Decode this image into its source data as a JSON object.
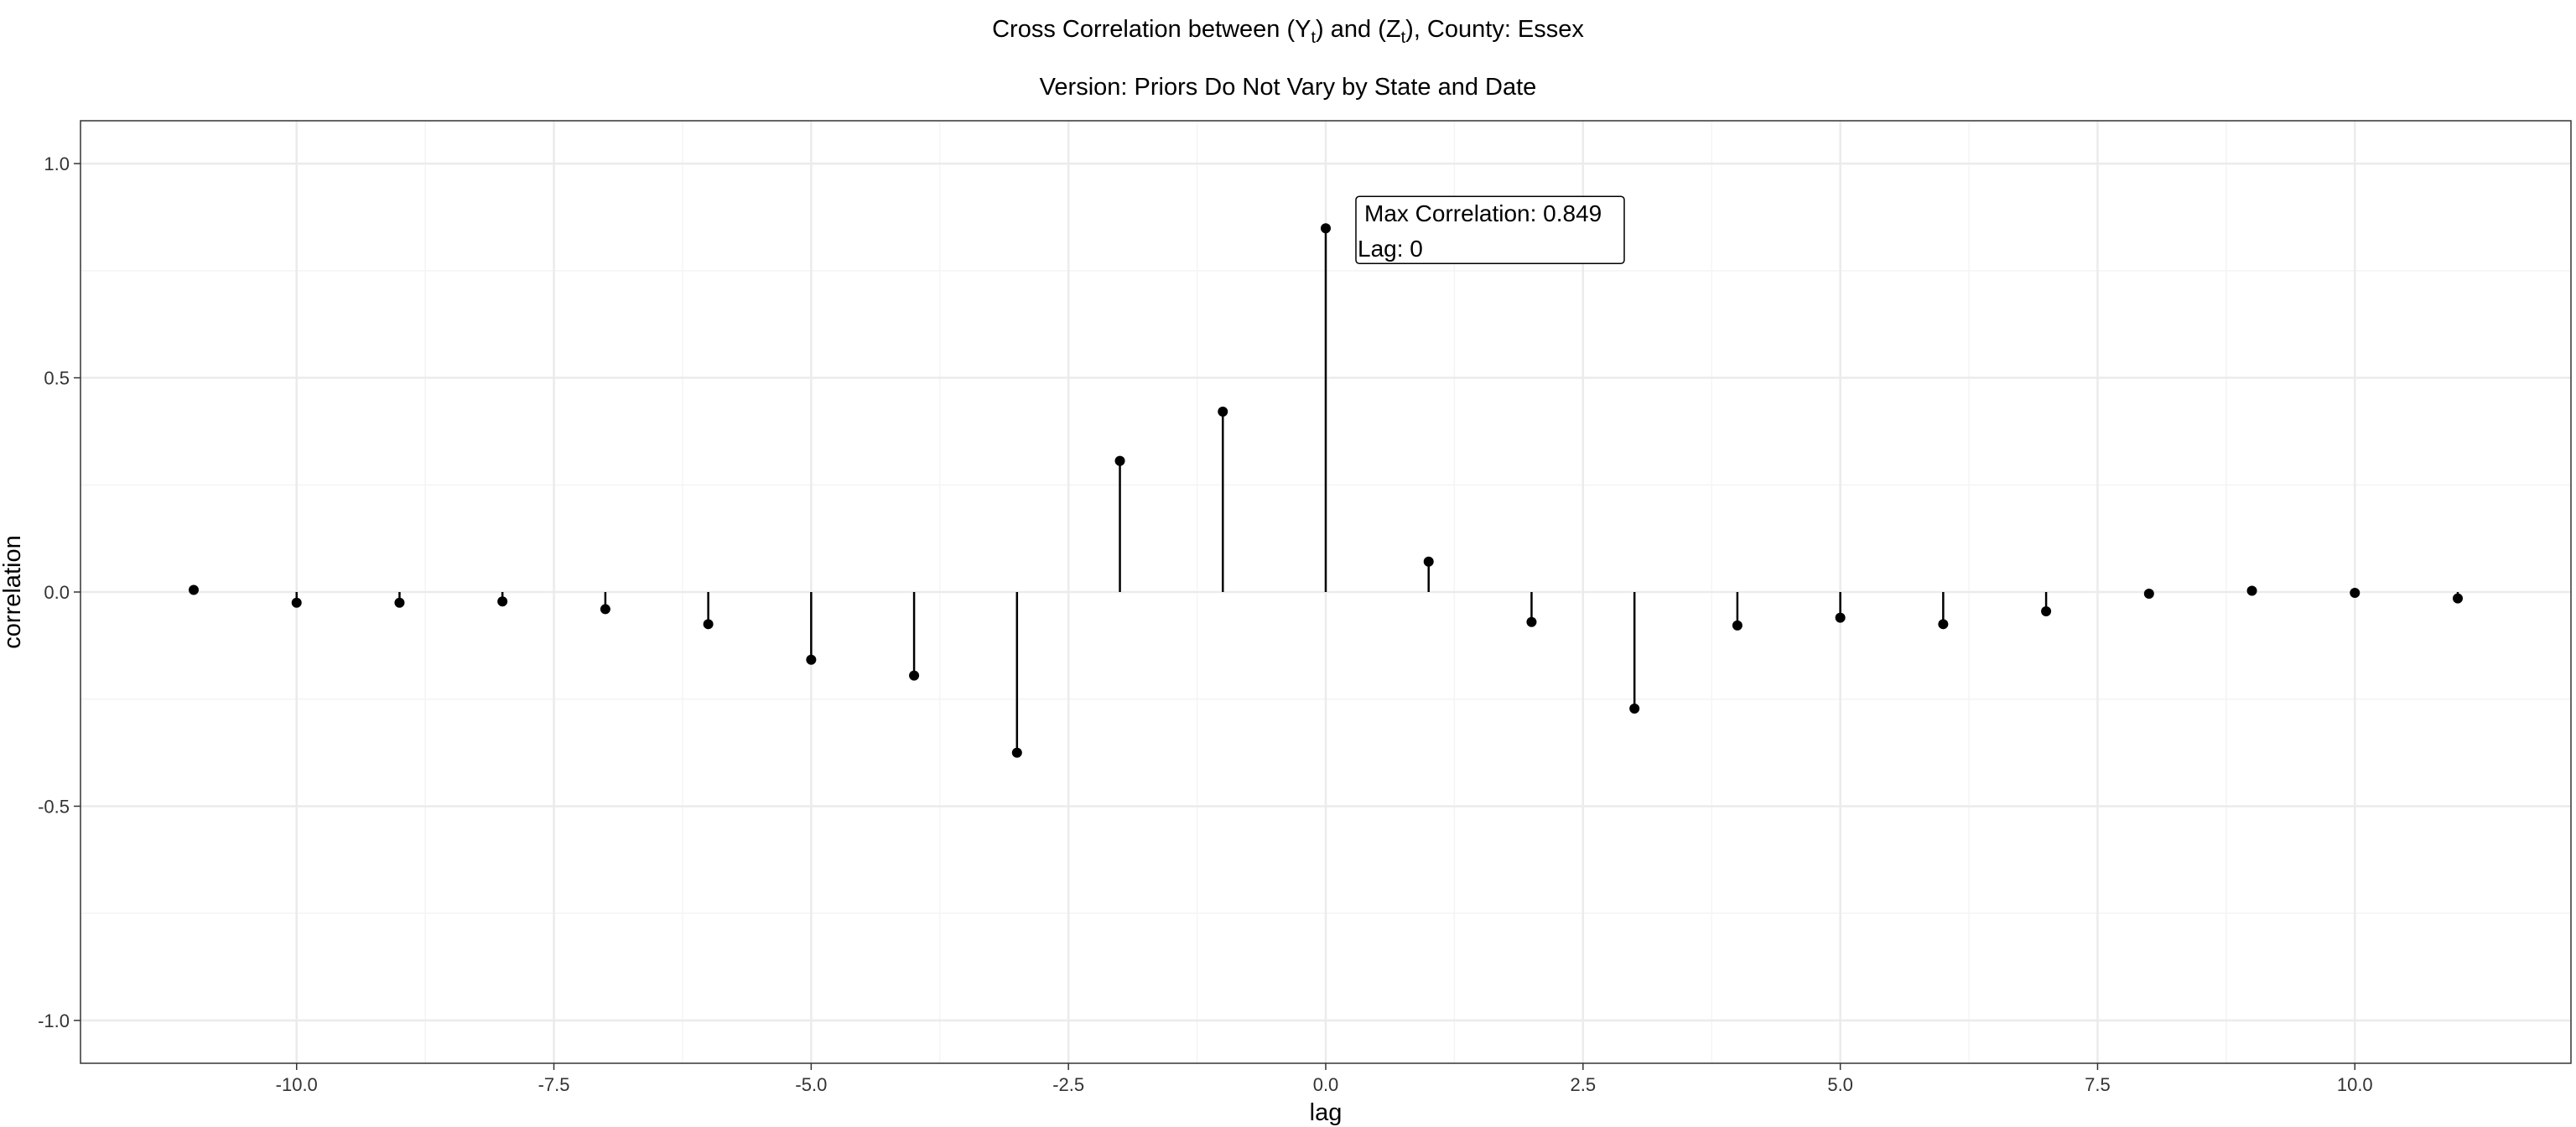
{
  "chart_data": {
    "type": "lollipop",
    "title": {
      "prefix": "Cross Correlation between (",
      "y_var": "Y",
      "between": ") and (",
      "z_var": "Z",
      "sub": "t",
      "suffix": "), County: Essex"
    },
    "subtitle": "Version: Priors Do Not Vary by State and Date",
    "xlabel": "lag",
    "ylabel": "correlation",
    "xlim": [
      -12.1,
      12.1
    ],
    "ylim": [
      -1.1,
      1.1
    ],
    "x_ticks": [
      -10.0,
      -7.5,
      -5.0,
      -2.5,
      0.0,
      2.5,
      5.0,
      7.5,
      10.0
    ],
    "x_tick_labels": [
      "-10.0",
      "-7.5",
      "-5.0",
      "-2.5",
      "0.0",
      "2.5",
      "5.0",
      "7.5",
      "10.0"
    ],
    "y_ticks": [
      1.0,
      0.5,
      0.0,
      -0.5,
      -1.0
    ],
    "y_tick_labels": [
      "1.0",
      "0.5",
      "0.0",
      "-0.5",
      "-1.0"
    ],
    "grid": true,
    "lags": [
      -11,
      -10,
      -9,
      -8,
      -7,
      -6,
      -5,
      -4,
      -3,
      -2,
      -1,
      0,
      1,
      2,
      3,
      4,
      5,
      6,
      7,
      8,
      9,
      10,
      11
    ],
    "correlation": [
      0.005,
      -0.025,
      -0.025,
      -0.022,
      -0.04,
      -0.075,
      -0.158,
      -0.195,
      -0.375,
      0.306,
      0.421,
      0.849,
      0.071,
      -0.07,
      -0.272,
      -0.078,
      -0.06,
      -0.075,
      -0.045,
      -0.004,
      0.003,
      -0.002,
      -0.015
    ],
    "annotation": {
      "lines": [
        "Max Correlation: 0.849",
        "Lag: 0"
      ],
      "x": 0,
      "y": 0.849
    }
  },
  "colors": {
    "background": "#ffffff",
    "panel_border": "#333333",
    "major_grid": "#ebebeb",
    "minor_grid": "#f4f4f4",
    "marks": "#000000",
    "tick_text": "#333333"
  }
}
